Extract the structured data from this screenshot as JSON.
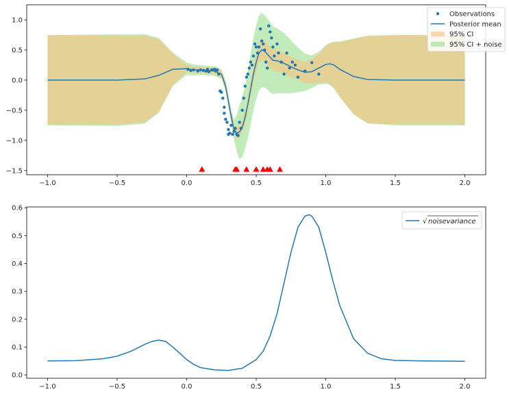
{
  "chart_data": [
    {
      "type": "line",
      "title": "",
      "xlabel": "",
      "ylabel": "",
      "xlim": [
        -1.15,
        2.15
      ],
      "ylim": [
        -1.57,
        1.25
      ],
      "xticks": [
        -1.0,
        -0.5,
        0.0,
        0.5,
        1.0,
        1.5,
        2.0
      ],
      "xtick_labels": [
        "−1.0",
        "−0.5",
        "0.0",
        "0.5",
        "1.0",
        "1.5",
        "2.0"
      ],
      "yticks": [
        1.0,
        0.5,
        0.0,
        -0.5,
        -1.0,
        -1.5
      ],
      "ytick_labels": [
        "1.0",
        "0.5",
        "0.0",
        "−0.5",
        "−1.0",
        "−1.5"
      ],
      "legend": {
        "placement": "top-right",
        "entries": [
          {
            "label": "Observations",
            "kind": "scatter",
            "color": "#1f77b4"
          },
          {
            "label": "Posterior mean",
            "kind": "line",
            "color": "#1f77b4"
          },
          {
            "label": "95% CI",
            "kind": "patch",
            "color": "#ffbb78"
          },
          {
            "label": "95% CI + noise",
            "kind": "patch",
            "color": "#98df8a"
          }
        ]
      },
      "posterior_mean": {
        "x": [
          -1.0,
          -0.5,
          -0.3,
          -0.2,
          -0.1,
          0.0,
          0.05,
          0.1,
          0.15,
          0.2,
          0.25,
          0.28,
          0.3,
          0.32,
          0.34,
          0.36,
          0.38,
          0.4,
          0.42,
          0.44,
          0.46,
          0.48,
          0.5,
          0.52,
          0.54,
          0.56,
          0.58,
          0.6,
          0.62,
          0.65,
          0.7,
          0.75,
          0.8,
          0.85,
          0.9,
          0.95,
          1.0,
          1.03,
          1.06,
          1.1,
          1.2,
          1.3,
          1.5,
          2.0
        ],
        "y": [
          0.0,
          0.0,
          0.02,
          0.08,
          0.18,
          0.19,
          0.17,
          0.17,
          0.16,
          0.15,
          0.1,
          -0.1,
          -0.35,
          -0.6,
          -0.82,
          -0.88,
          -0.86,
          -0.78,
          -0.62,
          -0.4,
          -0.15,
          0.1,
          0.3,
          0.45,
          0.5,
          0.48,
          0.43,
          0.38,
          0.33,
          0.32,
          0.28,
          0.22,
          0.17,
          0.13,
          0.14,
          0.2,
          0.26,
          0.27,
          0.25,
          0.18,
          0.06,
          0.01,
          0.0,
          0.0
        ],
        "color": "#1f77b4"
      },
      "ci95": {
        "x": [
          -1.0,
          -0.5,
          -0.3,
          -0.2,
          -0.1,
          0.0,
          0.05,
          0.1,
          0.15,
          0.2,
          0.25,
          0.28,
          0.3,
          0.32,
          0.34,
          0.36,
          0.38,
          0.4,
          0.42,
          0.44,
          0.46,
          0.48,
          0.5,
          0.52,
          0.54,
          0.56,
          0.58,
          0.6,
          0.62,
          0.65,
          0.7,
          0.75,
          0.8,
          0.85,
          0.9,
          0.95,
          1.0,
          1.03,
          1.06,
          1.1,
          1.2,
          1.3,
          1.5,
          2.0
        ],
        "half_width": [
          0.74,
          0.74,
          0.72,
          0.6,
          0.26,
          0.06,
          0.05,
          0.05,
          0.05,
          0.05,
          0.06,
          0.07,
          0.08,
          0.08,
          0.09,
          0.09,
          0.1,
          0.1,
          0.12,
          0.13,
          0.14,
          0.14,
          0.15,
          0.16,
          0.16,
          0.17,
          0.17,
          0.18,
          0.18,
          0.18,
          0.17,
          0.17,
          0.16,
          0.18,
          0.2,
          0.24,
          0.3,
          0.34,
          0.38,
          0.45,
          0.62,
          0.72,
          0.74,
          0.74
        ],
        "color": "#ffbb78"
      },
      "ci95_noise": {
        "x": [
          -1.0,
          -0.5,
          -0.3,
          -0.2,
          -0.1,
          0.0,
          0.05,
          0.1,
          0.15,
          0.2,
          0.25,
          0.28,
          0.3,
          0.32,
          0.34,
          0.36,
          0.38,
          0.4,
          0.42,
          0.44,
          0.46,
          0.48,
          0.5,
          0.52,
          0.54,
          0.56,
          0.58,
          0.6,
          0.62,
          0.65,
          0.7,
          0.75,
          0.8,
          0.85,
          0.9,
          0.95,
          1.0,
          1.03,
          1.06,
          1.1,
          1.2,
          1.3,
          1.5,
          2.0
        ],
        "half_width": [
          0.75,
          0.76,
          0.74,
          0.62,
          0.28,
          0.1,
          0.09,
          0.08,
          0.08,
          0.08,
          0.08,
          0.09,
          0.1,
          0.11,
          0.16,
          0.3,
          0.45,
          0.5,
          0.52,
          0.56,
          0.58,
          0.6,
          0.61,
          0.62,
          0.62,
          0.6,
          0.59,
          0.58,
          0.56,
          0.54,
          0.5,
          0.44,
          0.37,
          0.31,
          0.27,
          0.27,
          0.32,
          0.35,
          0.39,
          0.46,
          0.63,
          0.73,
          0.75,
          0.75
        ],
        "color": "#98df8a"
      },
      "observations": {
        "x": [
          0.01,
          0.03,
          0.05,
          0.08,
          0.1,
          0.12,
          0.14,
          0.15,
          0.16,
          0.18,
          0.2,
          0.21,
          0.22,
          0.23,
          0.24,
          0.25,
          0.26,
          0.27,
          0.27,
          0.28,
          0.29,
          0.3,
          0.3,
          0.31,
          0.32,
          0.33,
          0.34,
          0.35,
          0.36,
          0.37,
          0.38,
          0.39,
          0.4,
          0.41,
          0.42,
          0.43,
          0.44,
          0.45,
          0.46,
          0.47,
          0.48,
          0.49,
          0.5,
          0.51,
          0.52,
          0.53,
          0.54,
          0.55,
          0.56,
          0.57,
          0.58,
          0.59,
          0.6,
          0.61,
          0.62,
          0.63,
          0.65,
          0.66,
          0.68,
          0.7,
          0.72,
          0.74,
          0.76,
          0.78,
          0.8,
          0.85,
          0.9,
          0.95
        ],
        "y": [
          0.18,
          0.16,
          0.17,
          0.15,
          0.17,
          0.16,
          0.15,
          0.18,
          0.14,
          0.17,
          0.18,
          0.15,
          0.17,
          0.1,
          -0.18,
          -0.2,
          -0.3,
          -0.45,
          -0.55,
          -0.65,
          -0.7,
          -0.82,
          -0.9,
          -0.88,
          -0.75,
          -0.9,
          -0.85,
          -0.8,
          -0.9,
          -0.92,
          -0.7,
          -0.8,
          -0.5,
          -0.3,
          -0.1,
          0.05,
          0.1,
          0.2,
          0.3,
          0.25,
          0.4,
          0.6,
          0.55,
          0.45,
          0.55,
          0.85,
          0.65,
          0.6,
          0.5,
          0.3,
          0.2,
          0.9,
          0.8,
          0.7,
          0.55,
          0.4,
          0.6,
          0.45,
          0.3,
          0.1,
          0.45,
          0.2,
          0.3,
          0.25,
          0.05,
          0.15,
          0.29,
          0.1
        ],
        "color": "#1f77b4"
      },
      "markers": {
        "x": [
          0.11,
          0.35,
          0.36,
          0.43,
          0.5,
          0.55,
          0.58,
          0.6,
          0.67
        ],
        "y": [
          -1.48,
          -1.48,
          -1.48,
          -1.48,
          -1.48,
          -1.48,
          -1.48,
          -1.48,
          -1.48
        ],
        "shape": "triangle-up",
        "color": "#ff0000"
      }
    },
    {
      "type": "line",
      "title": "",
      "xlabel": "",
      "ylabel": "",
      "xlim": [
        -1.15,
        2.15
      ],
      "ylim": [
        -0.012,
        0.603
      ],
      "xticks": [
        -1.0,
        -0.5,
        0.0,
        0.5,
        1.0,
        1.5,
        2.0
      ],
      "xtick_labels": [
        "−1.0",
        "−0.5",
        "0.0",
        "0.5",
        "1.0",
        "1.5",
        "2.0"
      ],
      "yticks": [
        0.6,
        0.5,
        0.4,
        0.3,
        0.2,
        0.1,
        0.0
      ],
      "ytick_labels": [
        "0.6",
        "0.5",
        "0.4",
        "0.3",
        "0.2",
        "0.1",
        "0.0"
      ],
      "legend": {
        "placement": "top-right",
        "entries": [
          {
            "label": "noisevariance",
            "kind": "line",
            "color": "#1f77b4",
            "sqrt": "√"
          }
        ]
      },
      "series": [
        {
          "name": "noisevariance",
          "x": [
            -1.0,
            -0.8,
            -0.6,
            -0.5,
            -0.4,
            -0.3,
            -0.25,
            -0.2,
            -0.15,
            -0.1,
            -0.05,
            0.0,
            0.05,
            0.1,
            0.2,
            0.3,
            0.4,
            0.5,
            0.55,
            0.6,
            0.65,
            0.7,
            0.75,
            0.8,
            0.85,
            0.88,
            0.9,
            0.95,
            1.0,
            1.05,
            1.1,
            1.2,
            1.3,
            1.4,
            1.5,
            1.7,
            2.0
          ],
          "y": [
            0.05,
            0.051,
            0.058,
            0.067,
            0.085,
            0.11,
            0.12,
            0.125,
            0.12,
            0.1,
            0.078,
            0.055,
            0.038,
            0.026,
            0.018,
            0.016,
            0.024,
            0.055,
            0.085,
            0.14,
            0.22,
            0.33,
            0.44,
            0.53,
            0.57,
            0.575,
            0.57,
            0.53,
            0.44,
            0.34,
            0.25,
            0.13,
            0.078,
            0.058,
            0.052,
            0.05,
            0.049
          ],
          "color": "#1f77b4"
        }
      ]
    }
  ]
}
